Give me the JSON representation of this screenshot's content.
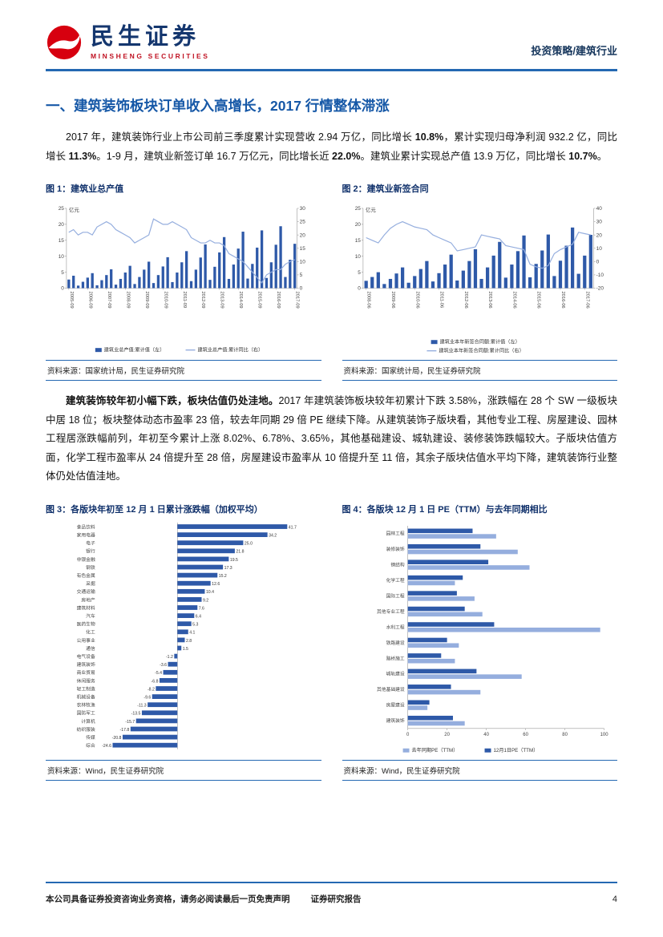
{
  "header": {
    "logo_text": "民生证券",
    "logo_subtext": "MINSHENG SECURITIES",
    "right_label": "投资策略/建筑行业"
  },
  "section": {
    "title": "一、建筑装饰板块订单收入高增长，2017 行情整体滞涨"
  },
  "paragraphs": {
    "p1": [
      {
        "t": "2017 年，建筑装饰行业上市公司前三季度累计实现营收 2.94 万亿，同比增长 ",
        "b": false
      },
      {
        "t": "10.8%",
        "b": true
      },
      {
        "t": "，累计实现归母净利润 932.2 亿，同比增长 ",
        "b": false
      },
      {
        "t": "11.3%",
        "b": true
      },
      {
        "t": "。1-9 月，建筑业新签订单 16.7 万亿元，同比增长近 ",
        "b": false
      },
      {
        "t": "22.0%",
        "b": true
      },
      {
        "t": "。建筑业累计实现总产值 13.9 万亿，同比增长 ",
        "b": false
      },
      {
        "t": "10.7%",
        "b": true
      },
      {
        "t": "。",
        "b": false
      }
    ],
    "p2": [
      {
        "t": "建筑装饰较年初小幅下跌，板块估值仍处洼地。",
        "b": true
      },
      {
        "t": "2017 年建筑装饰板块较年初累计下跌 3.58%，涨跌幅在 28 个 SW 一级板块中居 18 位；板块整体动态市盈率 23 倍，较去年同期 29 倍 PE 继续下降。从建筑装饰子版块看，其他专业工程、房屋建设、园林工程居涨跌幅前列，年初至今累计上涨 8.02%、6.78%、3.65%，其他基础建设、城轨建设、装修装饰跌幅较大。子版块估值方面，化学工程市盈率从 24 倍提升至 28 倍，房屋建设市盈率从 10 倍提升至 11 倍，其余子版块估值水平均下降，建筑装饰行业整体仍处估值洼地。",
        "b": false
      }
    ]
  },
  "figures": {
    "fig1": {
      "title": "图 1：建筑业总产值",
      "source": "资料来源：国家统计局，民生证券研究院"
    },
    "fig2": {
      "title": "图 2：建筑业新签合同",
      "source": "资料来源：国家统计局，民生证券研究院"
    },
    "fig3": {
      "title": "图 3：各版块年初至 12 月 1 日累计涨跌幅（加权平均）",
      "source": "资料来源：Wind，民生证券研究院"
    },
    "fig4": {
      "title": "图 4：各版块 12 月 1 日 PE（TTM）与去年同期相比",
      "source": "资料来源：Wind，民生证券研究院"
    }
  },
  "chart_data": [
    {
      "type": "combo",
      "title": "建筑业总产值",
      "unit": "亿元",
      "tick_every": 4,
      "x": [
        "2005-09",
        "2005-12",
        "2006-03",
        "2006-06",
        "2006-09",
        "2006-12",
        "2007-03",
        "2007-06",
        "2007-09",
        "2007-12",
        "2008-03",
        "2008-06",
        "2008-09",
        "2008-12",
        "2009-03",
        "2009-06",
        "2009-09",
        "2009-12",
        "2010-03",
        "2010-06",
        "2010-09",
        "2010-12",
        "2011-03",
        "2011-06",
        "2011-09",
        "2011-12",
        "2012-03",
        "2012-06",
        "2012-09",
        "2012-12",
        "2013-03",
        "2013-06",
        "2013-09",
        "2013-12",
        "2014-03",
        "2014-06",
        "2014-09",
        "2014-12",
        "2015-03",
        "2015-06",
        "2015-09",
        "2015-12",
        "2016-03",
        "2016-06",
        "2016-09",
        "2016-12",
        "2017-03",
        "2017-06",
        "2017-09"
      ],
      "bars": {
        "name": "建筑业总产值:累计值（左）",
        "values": [
          2.7,
          3.9,
          0.8,
          2.0,
          3.3,
          4.7,
          0.9,
          2.5,
          4.1,
          5.9,
          1.1,
          2.9,
          4.9,
          7.0,
          1.3,
          3.5,
          5.8,
          8.3,
          1.6,
          4.1,
          6.8,
          9.7,
          1.9,
          4.9,
          8.1,
          11.6,
          2.2,
          5.8,
          9.6,
          13.7,
          2.6,
          6.7,
          11.2,
          16.0,
          2.9,
          7.4,
          12.4,
          17.7,
          3.0,
          7.6,
          12.7,
          18.1,
          3.2,
          8.1,
          13.6,
          19.4,
          3.5,
          8.9,
          13.9
        ]
      },
      "line": {
        "name": "建筑业总产值:累计同比（右）",
        "values": [
          21,
          22,
          20,
          21,
          21,
          20,
          23,
          24,
          25,
          24,
          22,
          21,
          20,
          19,
          17,
          18,
          19,
          20,
          26,
          25,
          24,
          24,
          25,
          24,
          23,
          22,
          19,
          18,
          17,
          17,
          18,
          17,
          17,
          16,
          13,
          12,
          11,
          10,
          8,
          6,
          4,
          2,
          5,
          6,
          7,
          7,
          9,
          10,
          10.7
        ]
      },
      "left_axis": {
        "min": 0,
        "max": 25,
        "ticks": [
          0,
          5,
          10,
          15,
          20,
          25
        ]
      },
      "right_axis": {
        "min": 0,
        "max": 30,
        "ticks": [
          0,
          5,
          10,
          15,
          20,
          25,
          30
        ]
      },
      "colors": {
        "bar": "#2e59a8",
        "line": "#95aede"
      }
    },
    {
      "type": "combo",
      "title": "建筑业新签合同",
      "unit": "亿元",
      "tick_every": 4,
      "x": [
        "2008-06",
        "2008-09",
        "2008-12",
        "2009-03",
        "2009-06",
        "2009-09",
        "2009-12",
        "2010-03",
        "2010-06",
        "2010-09",
        "2010-12",
        "2011-03",
        "2011-06",
        "2011-09",
        "2011-12",
        "2012-03",
        "2012-06",
        "2012-09",
        "2012-12",
        "2013-03",
        "2013-06",
        "2013-09",
        "2013-12",
        "2014-03",
        "2014-06",
        "2014-09",
        "2014-12",
        "2015-03",
        "2015-06",
        "2015-09",
        "2015-12",
        "2016-03",
        "2016-06",
        "2016-09",
        "2016-12",
        "2017-03",
        "2017-06",
        "2017-09"
      ],
      "bars": {
        "name": "建筑业本年新签合同额:累计值（左）",
        "values": [
          2.3,
          3.5,
          5.0,
          1.3,
          2.9,
          4.6,
          6.5,
          1.7,
          3.8,
          6.0,
          8.5,
          2.1,
          4.7,
          7.4,
          10.5,
          2.4,
          5.5,
          8.5,
          12.2,
          2.9,
          6.5,
          10.2,
          14.5,
          3.3,
          7.4,
          11.6,
          16.5,
          3.4,
          7.6,
          11.8,
          16.8,
          3.8,
          8.6,
          13.3,
          19.0,
          4.5,
          10.2,
          16.7
        ]
      },
      "line": {
        "name": "建筑业本年新签合同额:累计同比（右）",
        "values": [
          18,
          16,
          14,
          20,
          25,
          28,
          30,
          28,
          26,
          25,
          24,
          20,
          18,
          16,
          14,
          8,
          9,
          10,
          11,
          20,
          19,
          18,
          17,
          12,
          11,
          10,
          9,
          -2,
          -4,
          -5,
          -3,
          6,
          9,
          11,
          13,
          22,
          21,
          20
        ]
      },
      "left_axis": {
        "min": 0,
        "max": 25,
        "ticks": [
          0,
          5,
          10,
          15,
          20,
          25
        ]
      },
      "right_axis": {
        "min": -20,
        "max": 40,
        "ticks": [
          -20,
          -10,
          0,
          10,
          20,
          30,
          40
        ]
      },
      "colors": {
        "bar": "#2e59a8",
        "line": "#95aede"
      }
    },
    {
      "type": "bar",
      "orientation": "horizontal",
      "title": "各版块年初至12月1日累计涨跌幅（加权平均）",
      "unit": "%",
      "xlim": [
        -30,
        50
      ],
      "categories": [
        "食品饮料",
        "家用电器",
        "电子",
        "银行",
        "非银金融",
        "钢铁",
        "有色金属",
        "采掘",
        "交通运输",
        "房地产",
        "建筑材料",
        "汽车",
        "医药生物",
        "化工",
        "公用事业",
        "通信",
        "电气设备",
        "建筑装饰",
        "商业贸易",
        "休闲服务",
        "轻工制造",
        "机械设备",
        "农林牧渔",
        "国防军工",
        "计算机",
        "纺织服装",
        "传媒",
        "综合"
      ],
      "values": [
        41.7,
        34.2,
        25.0,
        21.8,
        19.5,
        17.3,
        15.2,
        12.6,
        10.4,
        9.2,
        7.6,
        6.4,
        5.3,
        4.1,
        2.8,
        1.5,
        -1.2,
        -3.58,
        -5.4,
        -6.8,
        -8.2,
        -9.6,
        -11.3,
        -13.5,
        -15.7,
        -17.8,
        -20.8,
        -24.6
      ],
      "colors": {
        "bar": "#2e59a8"
      }
    },
    {
      "type": "bar",
      "orientation": "horizontal",
      "grouped": true,
      "title": "各版块12月1日PE（TTM）与去年同期相比",
      "xlim": [
        0,
        100
      ],
      "xticks": [
        0,
        20,
        40,
        60,
        80,
        100
      ],
      "categories": [
        "园林工程",
        "装修装饰",
        "钢结构",
        "化学工程",
        "国际工程",
        "其他专业工程",
        "水利工程",
        "铁路建设",
        "路桥施工",
        "城轨建设",
        "其他基础建设",
        "房屋建设",
        "建筑装饰"
      ],
      "series": [
        {
          "name": "12月1日PE（TTM）",
          "values": [
            33,
            37,
            41,
            28,
            25,
            29,
            44,
            20,
            17,
            35,
            22,
            11,
            23
          ]
        },
        {
          "name": "去年同期PE（TTM）",
          "values": [
            45,
            56,
            62,
            24,
            34,
            38,
            98,
            26,
            24,
            58,
            37,
            10,
            29
          ]
        }
      ],
      "colors": {
        "series": [
          "#2e59a8",
          "#95aede"
        ]
      }
    }
  ],
  "colors": {
    "brand_red": "#d7000f",
    "brand_blue": "#2468b2",
    "title_blue": "#1658a7",
    "chart_dark_blue": "#2e59a8",
    "chart_light_blue": "#95aede"
  },
  "footer": {
    "disclaimer": "本公司具备证券投资咨询业务资格，请务必阅读最后一页免责声明",
    "report_type": "证券研究报告",
    "page": "4"
  }
}
